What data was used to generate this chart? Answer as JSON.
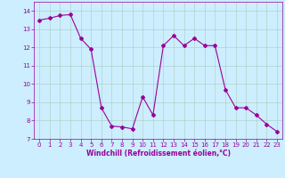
{
  "x": [
    0,
    1,
    2,
    3,
    4,
    5,
    6,
    7,
    8,
    9,
    10,
    11,
    12,
    13,
    14,
    15,
    16,
    17,
    18,
    19,
    20,
    21,
    22,
    23
  ],
  "y": [
    13.5,
    13.6,
    13.75,
    13.8,
    12.5,
    11.9,
    8.7,
    7.7,
    7.65,
    7.55,
    9.3,
    8.3,
    12.1,
    12.65,
    12.1,
    12.5,
    12.1,
    12.1,
    9.7,
    8.7,
    8.7,
    8.3,
    7.8,
    7.4
  ],
  "line_color": "#990099",
  "marker": "D",
  "marker_size": 2,
  "bg_color": "#cceeff",
  "grid_color": "#aaccbb",
  "xlabel": "Windchill (Refroidissement éolien,°C)",
  "xlabel_color": "#990099",
  "tick_color": "#990099",
  "label_color": "#990099",
  "ylim": [
    7,
    14.5
  ],
  "xlim": [
    -0.5,
    23.5
  ],
  "yticks": [
    7,
    8,
    9,
    10,
    11,
    12,
    13,
    14
  ],
  "xticks": [
    0,
    1,
    2,
    3,
    4,
    5,
    6,
    7,
    8,
    9,
    10,
    11,
    12,
    13,
    14,
    15,
    16,
    17,
    18,
    19,
    20,
    21,
    22,
    23
  ],
  "figsize": [
    3.2,
    2.0
  ],
  "dpi": 100
}
